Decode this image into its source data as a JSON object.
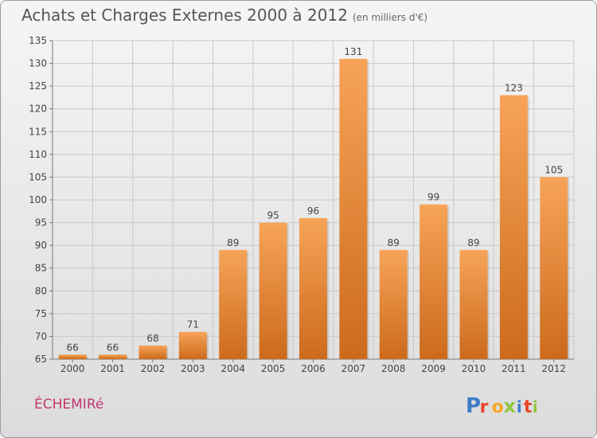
{
  "header": {
    "title": "Achats et Charges Externes 2000 à 2012",
    "unit": "(en milliers d'€)"
  },
  "footer": {
    "commune": "ÉCHEMIRé",
    "logo_text": "Proxiti"
  },
  "colors": {
    "bar_top": "#f7a458",
    "bar_bottom": "#cc6a1c",
    "grid": "#c8c8c8",
    "commune": "#c2386f",
    "logo": [
      "#3e7cc8",
      "#e7462b",
      "#f5a623",
      "#8dc63f",
      "#3e7cc8",
      "#e7462b",
      "#8dc63f"
    ]
  },
  "chart_data": {
    "type": "bar",
    "title": "Achats et Charges Externes 2000 à 2012",
    "subtitle": "(en milliers d'€)",
    "categories": [
      "2000",
      "2001",
      "2002",
      "2003",
      "2004",
      "2005",
      "2006",
      "2007",
      "2008",
      "2009",
      "2010",
      "2011",
      "2012"
    ],
    "values": [
      66,
      66,
      68,
      71,
      89,
      95,
      96,
      131,
      89,
      99,
      89,
      123,
      105
    ],
    "ylim": [
      65,
      135
    ],
    "yticks": [
      65,
      70,
      75,
      80,
      85,
      90,
      95,
      100,
      105,
      110,
      115,
      120,
      125,
      130,
      135
    ],
    "xlabel": "",
    "ylabel": "",
    "grid": true,
    "legend": "none"
  }
}
